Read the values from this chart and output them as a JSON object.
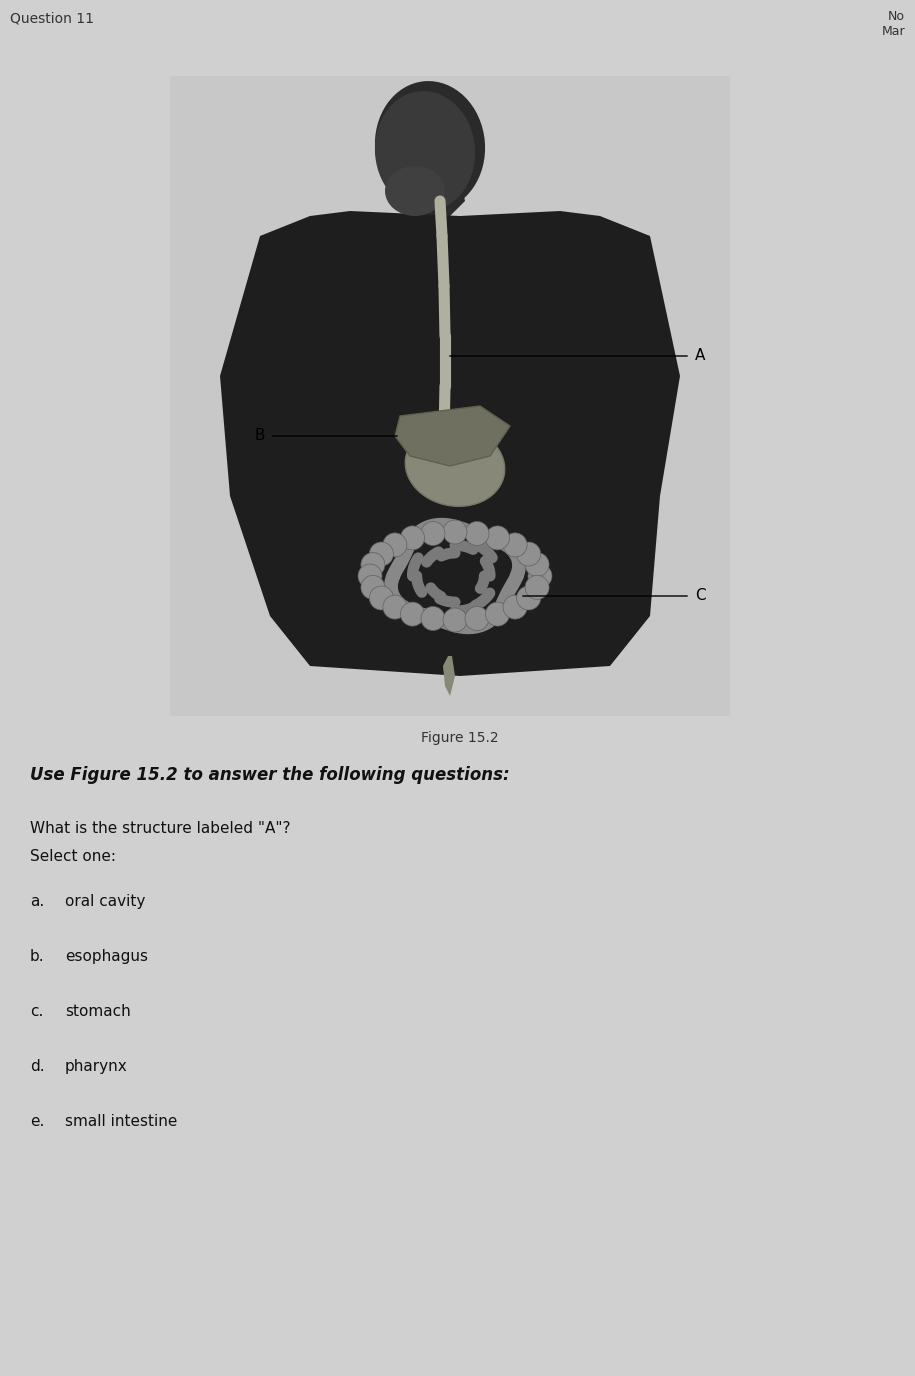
{
  "background_color": "#d4d4d4",
  "page_bg": "#d0d0d0",
  "header_text": "Question 11",
  "header_right_line1": "No",
  "header_right_line2": "Mar",
  "figure_caption": "Figure 15.2",
  "instruction_text": "Use Figure 15.2 to answer the following questions:",
  "question_text": "What is the structure labeled \"A\"?",
  "select_text": "Select one:",
  "options": [
    {
      "letter": "a.",
      "text": "oral cavity"
    },
    {
      "letter": "b.",
      "text": "esophagus"
    },
    {
      "letter": "c.",
      "text": "stomach"
    },
    {
      "letter": "d.",
      "text": "pharynx"
    },
    {
      "letter": "e.",
      "text": "small intestine"
    }
  ],
  "label_A": "A",
  "label_B": "B",
  "label_C": "C",
  "title_fontsize": 11,
  "body_fontsize": 12,
  "option_fontsize": 12
}
